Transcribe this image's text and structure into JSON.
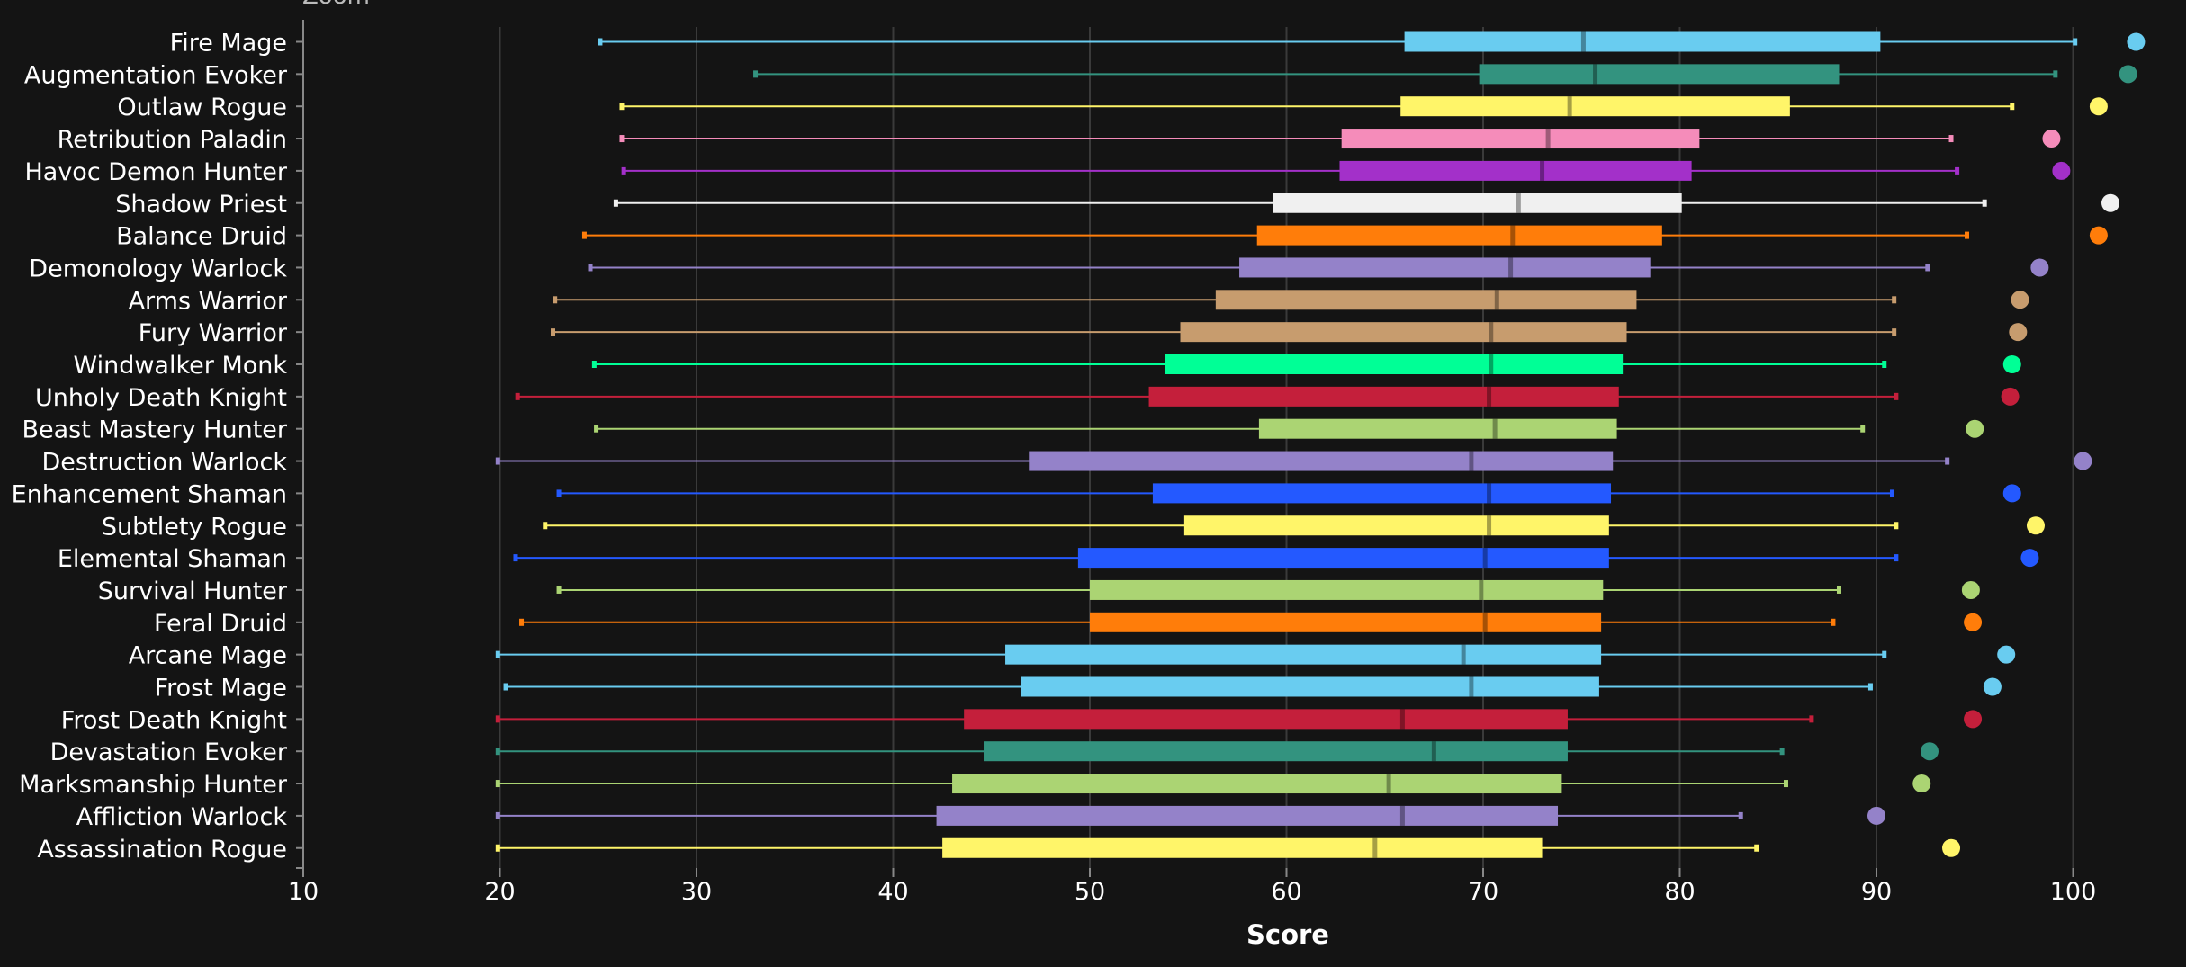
{
  "chart_data": {
    "type": "boxplot",
    "partial_label": "Zoom",
    "xlabel": "Score",
    "xlim": [
      10,
      105
    ],
    "xticks": [
      10,
      20,
      30,
      40,
      50,
      60,
      70,
      80,
      90,
      100
    ],
    "grid": true,
    "categories": [
      "Fire Mage",
      "Augmentation Evoker",
      "Outlaw Rogue",
      "Retribution Paladin",
      "Havoc Demon Hunter",
      "Shadow Priest",
      "Balance Druid",
      "Demonology Warlock",
      "Arms Warrior",
      "Fury Warrior",
      "Windwalker Monk",
      "Unholy Death Knight",
      "Beast Mastery Hunter",
      "Destruction Warlock",
      "Enhancement Shaman",
      "Subtlety Rogue",
      "Elemental Shaman",
      "Survival Hunter",
      "Feral Druid",
      "Arcane Mage",
      "Frost Mage",
      "Frost Death Knight",
      "Devastation Evoker",
      "Marksmanship Hunter",
      "Affliction Warlock",
      "Assassination Rogue"
    ],
    "series": [
      {
        "min": 25.1,
        "q1": 66.0,
        "median": 75.1,
        "q3": 90.2,
        "max": 100.1,
        "outlier": 103.2,
        "color": "#69CCF0"
      },
      {
        "min": 33.0,
        "q1": 69.8,
        "median": 75.7,
        "q3": 88.1,
        "max": 99.1,
        "outlier": 102.8,
        "color": "#33937F"
      },
      {
        "min": 26.2,
        "q1": 65.8,
        "median": 74.4,
        "q3": 85.6,
        "max": 96.9,
        "outlier": 101.3,
        "color": "#FFF569"
      },
      {
        "min": 26.2,
        "q1": 62.8,
        "median": 73.3,
        "q3": 81.0,
        "max": 93.8,
        "outlier": 98.9,
        "color": "#F58CBA"
      },
      {
        "min": 26.3,
        "q1": 62.7,
        "median": 73.0,
        "q3": 80.6,
        "max": 94.1,
        "outlier": 99.4,
        "color": "#A330C9"
      },
      {
        "min": 25.9,
        "q1": 59.3,
        "median": 71.8,
        "q3": 80.1,
        "max": 95.5,
        "outlier": 101.9,
        "color": "#F0F0F0"
      },
      {
        "min": 24.3,
        "q1": 58.5,
        "median": 71.5,
        "q3": 79.1,
        "max": 94.6,
        "outlier": 101.3,
        "color": "#FF7D0A"
      },
      {
        "min": 24.6,
        "q1": 57.6,
        "median": 71.4,
        "q3": 78.5,
        "max": 92.6,
        "outlier": 98.3,
        "color": "#9482C9"
      },
      {
        "min": 22.8,
        "q1": 56.4,
        "median": 70.7,
        "q3": 77.8,
        "max": 90.9,
        "outlier": 97.3,
        "color": "#C79C6E"
      },
      {
        "min": 22.7,
        "q1": 54.6,
        "median": 70.4,
        "q3": 77.3,
        "max": 90.9,
        "outlier": 97.2,
        "color": "#C79C6E"
      },
      {
        "min": 24.8,
        "q1": 53.8,
        "median": 70.4,
        "q3": 77.1,
        "max": 90.4,
        "outlier": 96.9,
        "color": "#00FF96"
      },
      {
        "min": 20.9,
        "q1": 53.0,
        "median": 70.3,
        "q3": 76.9,
        "max": 91.0,
        "outlier": 96.8,
        "color": "#C41F3B"
      },
      {
        "min": 24.9,
        "q1": 58.6,
        "median": 70.6,
        "q3": 76.8,
        "max": 89.3,
        "outlier": 95.0,
        "color": "#ABD473"
      },
      {
        "min": 19.9,
        "q1": 46.9,
        "median": 69.4,
        "q3": 76.6,
        "max": 93.6,
        "outlier": 100.5,
        "color": "#9482C9"
      },
      {
        "min": 23.0,
        "q1": 53.2,
        "median": 70.3,
        "q3": 76.5,
        "max": 90.8,
        "outlier": 96.9,
        "color": "#2459FF"
      },
      {
        "min": 22.3,
        "q1": 54.8,
        "median": 70.3,
        "q3": 76.4,
        "max": 91.0,
        "outlier": 98.1,
        "color": "#FFF569"
      },
      {
        "min": 20.8,
        "q1": 49.4,
        "median": 70.1,
        "q3": 76.4,
        "max": 91.0,
        "outlier": 97.8,
        "color": "#2459FF"
      },
      {
        "min": 23.0,
        "q1": 50.0,
        "median": 69.9,
        "q3": 76.1,
        "max": 88.1,
        "outlier": 94.8,
        "color": "#ABD473"
      },
      {
        "min": 21.1,
        "q1": 50.0,
        "median": 70.1,
        "q3": 76.0,
        "max": 87.8,
        "outlier": 94.9,
        "color": "#FF7D0A"
      },
      {
        "min": 19.9,
        "q1": 45.7,
        "median": 69.0,
        "q3": 76.0,
        "max": 90.4,
        "outlier": 96.6,
        "color": "#69CCF0"
      },
      {
        "min": 20.3,
        "q1": 46.5,
        "median": 69.4,
        "q3": 75.9,
        "max": 89.7,
        "outlier": 95.9,
        "color": "#69CCF0"
      },
      {
        "min": 19.9,
        "q1": 43.6,
        "median": 65.9,
        "q3": 74.3,
        "max": 86.7,
        "outlier": 94.9,
        "color": "#C41F3B"
      },
      {
        "min": 19.9,
        "q1": 44.6,
        "median": 67.5,
        "q3": 74.3,
        "max": 85.2,
        "outlier": 92.7,
        "color": "#33937F"
      },
      {
        "min": 19.9,
        "q1": 43.0,
        "median": 65.2,
        "q3": 74.0,
        "max": 85.4,
        "outlier": 92.3,
        "color": "#ABD473"
      },
      {
        "min": 19.9,
        "q1": 42.2,
        "median": 65.9,
        "q3": 73.8,
        "max": 83.1,
        "outlier": 90.0,
        "color": "#9482C9"
      },
      {
        "min": 19.9,
        "q1": 42.5,
        "median": 64.5,
        "q3": 73.0,
        "max": 83.9,
        "outlier": 93.8,
        "color": "#FFF569"
      }
    ]
  }
}
